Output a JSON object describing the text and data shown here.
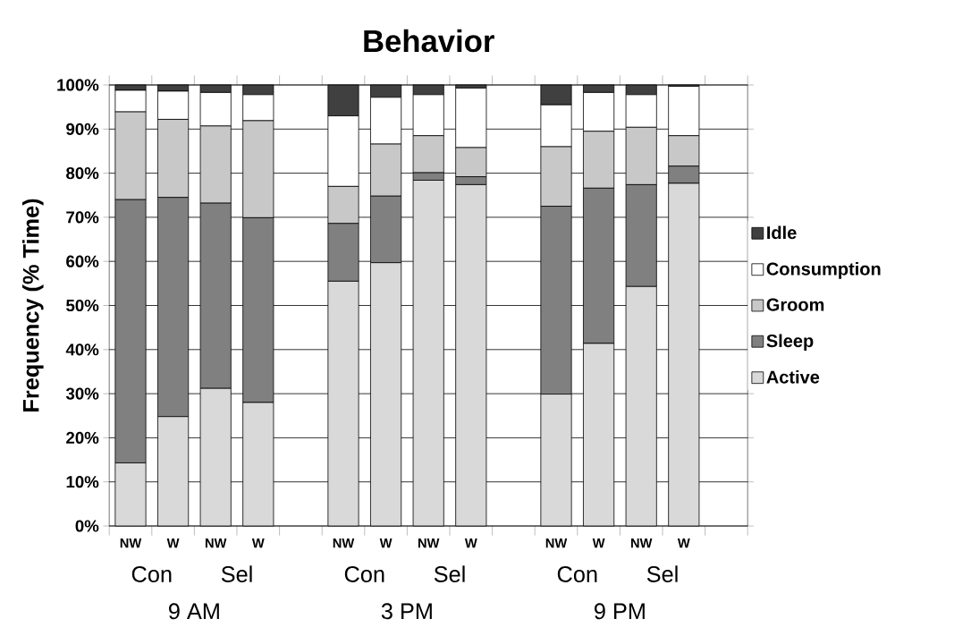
{
  "chart_data": {
    "type": "bar",
    "title": "Behavior",
    "ylabel": "Frequency (% Time)",
    "stacked": true,
    "grid": "y",
    "legend": "right",
    "categories": [
      "NW",
      "W",
      "NW",
      "W",
      null,
      "NW",
      "W",
      "NW",
      "W",
      null,
      "NW",
      "W",
      "NW",
      "W",
      null
    ],
    "ylim": [
      0,
      100
    ],
    "yticks": [
      {
        "value": 0,
        "label": "0%"
      },
      {
        "value": 10,
        "label": "10%"
      },
      {
        "value": 20,
        "label": "20%"
      },
      {
        "value": 30,
        "label": "30%"
      },
      {
        "value": 40,
        "label": "40%"
      },
      {
        "value": 50,
        "label": "50%"
      },
      {
        "value": 60,
        "label": "60%"
      },
      {
        "value": 70,
        "label": "70%"
      },
      {
        "value": 80,
        "label": "80%"
      },
      {
        "value": 90,
        "label": "90%"
      },
      {
        "value": 100,
        "label": "100%"
      }
    ],
    "series": [
      {
        "name": "Active",
        "color": "#d9d9d9",
        "values": [
          14.3,
          24.8,
          31.2,
          28.0,
          null,
          55.5,
          59.7,
          78.4,
          77.4,
          null,
          29.9,
          41.4,
          54.3,
          77.7,
          null
        ]
      },
      {
        "name": "Sleep",
        "color": "#808080",
        "values": [
          59.7,
          49.7,
          42.0,
          41.9,
          null,
          13.1,
          15.1,
          1.7,
          1.8,
          null,
          42.6,
          35.2,
          23.1,
          3.9,
          null
        ]
      },
      {
        "name": "Groom",
        "color": "#c8c8c8",
        "values": [
          19.9,
          17.7,
          17.5,
          22.0,
          null,
          8.4,
          11.8,
          8.4,
          6.6,
          null,
          13.5,
          12.9,
          13.0,
          6.9,
          null
        ]
      },
      {
        "name": "Consumption",
        "color": "#ffffff",
        "values": [
          4.9,
          6.4,
          7.6,
          5.9,
          null,
          16.0,
          10.6,
          9.3,
          13.5,
          null,
          9.5,
          8.8,
          7.4,
          11.2,
          null
        ]
      },
      {
        "name": "Idle",
        "color": "#404040",
        "values": [
          1.2,
          1.4,
          1.7,
          2.2,
          null,
          7.0,
          2.8,
          2.2,
          0.7,
          null,
          4.5,
          1.7,
          2.2,
          0.3,
          null
        ]
      }
    ],
    "annotations": [
      "Con",
      "Sel",
      "Con",
      "Sel",
      "Con",
      "Sel",
      "9 AM",
      "3 PM",
      "9 PM"
    ]
  }
}
